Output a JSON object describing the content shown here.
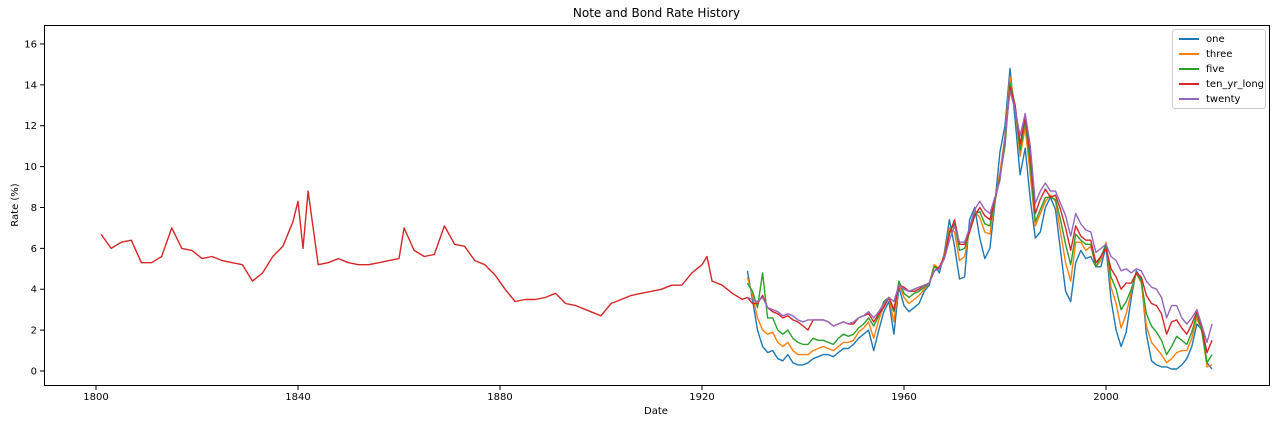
{
  "chart_data": {
    "type": "line",
    "title": "Note and Bond Rate History",
    "xlabel": "Date",
    "ylabel": "Rate (%)",
    "xlim": [
      1790,
      2031
    ],
    "ylim": [
      -0.7,
      16.9
    ],
    "xticks": [
      1800,
      1840,
      1880,
      1920,
      1960,
      2000
    ],
    "yticks": [
      0,
      2,
      4,
      6,
      8,
      10,
      12,
      14,
      16
    ],
    "grid": false,
    "legend_position": "upper right",
    "series": [
      {
        "name": "one",
        "color": "#1f77b4",
        "x": [
          1929,
          1930,
          1931,
          1932,
          1933,
          1934,
          1935,
          1936,
          1937,
          1938,
          1939,
          1940,
          1941,
          1942,
          1943,
          1944,
          1945,
          1946,
          1947,
          1948,
          1949,
          1950,
          1951,
          1952,
          1953,
          1954,
          1955,
          1956,
          1957,
          1958,
          1959,
          1960,
          1961,
          1962,
          1963,
          1964,
          1965,
          1966,
          1967,
          1968,
          1969,
          1970,
          1971,
          1972,
          1973,
          1974,
          1975,
          1976,
          1977,
          1978,
          1979,
          1980,
          1981,
          1982,
          1983,
          1984,
          1985,
          1986,
          1987,
          1988,
          1989,
          1990,
          1991,
          1992,
          1993,
          1994,
          1995,
          1996,
          1997,
          1998,
          1999,
          2000,
          2001,
          2002,
          2003,
          2004,
          2005,
          2006,
          2007,
          2008,
          2009,
          2010,
          2011,
          2012,
          2013,
          2014,
          2015,
          2016,
          2017,
          2018,
          2019,
          2020,
          2021
        ],
        "values": [
          4.9,
          3.5,
          2.0,
          1.2,
          0.9,
          1.0,
          0.6,
          0.5,
          0.8,
          0.4,
          0.3,
          0.3,
          0.4,
          0.6,
          0.7,
          0.8,
          0.8,
          0.7,
          0.9,
          1.1,
          1.1,
          1.3,
          1.6,
          1.8,
          2.0,
          1.0,
          2.0,
          2.9,
          3.4,
          1.8,
          4.1,
          3.2,
          2.9,
          3.1,
          3.3,
          3.9,
          4.2,
          5.2,
          4.8,
          5.8,
          7.4,
          6.1,
          4.5,
          4.6,
          7.4,
          8.0,
          6.5,
          5.5,
          6.0,
          8.2,
          10.7,
          12.0,
          14.8,
          12.3,
          9.6,
          10.9,
          8.4,
          6.5,
          6.8,
          8.0,
          8.5,
          7.9,
          5.9,
          3.9,
          3.4,
          5.3,
          5.9,
          5.5,
          5.6,
          5.1,
          5.1,
          6.1,
          3.5,
          2.0,
          1.2,
          1.9,
          3.6,
          4.9,
          4.5,
          1.8,
          0.5,
          0.3,
          0.2,
          0.2,
          0.1,
          0.1,
          0.3,
          0.6,
          1.2,
          2.3,
          2.0,
          0.4,
          0.1
        ]
      },
      {
        "name": "three",
        "color": "#ff7f0e",
        "x": [
          1929,
          1930,
          1931,
          1932,
          1933,
          1934,
          1935,
          1936,
          1937,
          1938,
          1939,
          1940,
          1941,
          1942,
          1943,
          1944,
          1945,
          1946,
          1947,
          1948,
          1949,
          1950,
          1951,
          1952,
          1953,
          1954,
          1955,
          1956,
          1957,
          1958,
          1959,
          1960,
          1961,
          1962,
          1963,
          1964,
          1965,
          1966,
          1967,
          1968,
          1969,
          1970,
          1971,
          1972,
          1973,
          1974,
          1975,
          1976,
          1977,
          1978,
          1979,
          1980,
          1981,
          1982,
          1983,
          1984,
          1985,
          1986,
          1987,
          1988,
          1989,
          1990,
          1991,
          1992,
          1993,
          1994,
          1995,
          1996,
          1997,
          1998,
          1999,
          2000,
          2001,
          2002,
          2003,
          2004,
          2005,
          2006,
          2007,
          2008,
          2009,
          2010,
          2011,
          2012,
          2013,
          2014,
          2015,
          2016,
          2017,
          2018,
          2019,
          2020,
          2021
        ],
        "values": [
          4.6,
          3.7,
          2.6,
          2.0,
          1.8,
          1.9,
          1.4,
          1.2,
          1.4,
          1.0,
          0.8,
          0.8,
          0.8,
          1.0,
          1.1,
          1.2,
          1.1,
          1.0,
          1.2,
          1.4,
          1.4,
          1.5,
          1.9,
          2.1,
          2.4,
          1.6,
          2.5,
          3.2,
          3.6,
          2.4,
          4.3,
          3.6,
          3.3,
          3.5,
          3.7,
          4.0,
          4.3,
          5.2,
          5.0,
          5.7,
          7.0,
          6.8,
          5.4,
          5.6,
          6.9,
          7.8,
          7.5,
          6.8,
          6.7,
          8.3,
          9.7,
          11.5,
          14.4,
          12.9,
          10.5,
          11.9,
          9.6,
          7.1,
          7.7,
          8.3,
          8.6,
          8.3,
          6.8,
          5.3,
          4.4,
          6.3,
          6.3,
          5.9,
          6.1,
          5.1,
          5.4,
          6.3,
          4.1,
          3.3,
          2.1,
          2.8,
          3.9,
          4.8,
          4.3,
          2.2,
          1.4,
          1.1,
          0.8,
          0.4,
          0.6,
          0.9,
          1.0,
          1.0,
          1.6,
          2.6,
          1.9,
          0.2,
          0.3
        ]
      },
      {
        "name": "five",
        "color": "#2ca02c",
        "x": [
          1929,
          1930,
          1931,
          1932,
          1933,
          1934,
          1935,
          1936,
          1937,
          1938,
          1939,
          1940,
          1941,
          1942,
          1943,
          1944,
          1945,
          1946,
          1947,
          1948,
          1949,
          1950,
          1951,
          1952,
          1953,
          1954,
          1955,
          1956,
          1957,
          1958,
          1959,
          1960,
          1961,
          1962,
          1963,
          1964,
          1965,
          1966,
          1967,
          1968,
          1969,
          1970,
          1971,
          1972,
          1973,
          1974,
          1975,
          1976,
          1977,
          1978,
          1979,
          1980,
          1981,
          1982,
          1983,
          1984,
          1985,
          1986,
          1987,
          1988,
          1989,
          1990,
          1991,
          1992,
          1993,
          1994,
          1995,
          1996,
          1997,
          1998,
          1999,
          2000,
          2001,
          2002,
          2003,
          2004,
          2005,
          2006,
          2007,
          2008,
          2009,
          2010,
          2011,
          2012,
          2013,
          2014,
          2015,
          2016,
          2017,
          2018,
          2019,
          2020,
          2021
        ],
        "values": [
          4.3,
          3.9,
          3.1,
          4.8,
          2.6,
          2.6,
          2.0,
          1.8,
          2.0,
          1.6,
          1.4,
          1.3,
          1.3,
          1.6,
          1.5,
          1.5,
          1.4,
          1.3,
          1.6,
          1.8,
          1.7,
          1.8,
          2.1,
          2.3,
          2.6,
          2.2,
          2.7,
          3.4,
          3.6,
          2.9,
          4.4,
          3.8,
          3.6,
          3.8,
          3.9,
          4.1,
          4.3,
          5.1,
          5.0,
          5.6,
          6.8,
          7.2,
          5.9,
          6.0,
          6.8,
          7.7,
          7.8,
          7.2,
          7.1,
          8.3,
          9.5,
          11.0,
          14.1,
          13.0,
          10.8,
          12.2,
          10.1,
          7.3,
          7.9,
          8.5,
          8.5,
          8.4,
          7.4,
          6.2,
          5.2,
          6.7,
          6.4,
          6.2,
          6.2,
          5.1,
          5.6,
          6.2,
          4.6,
          4.0,
          3.0,
          3.4,
          4.0,
          4.8,
          4.4,
          2.8,
          2.2,
          1.9,
          1.5,
          0.8,
          1.2,
          1.7,
          1.5,
          1.3,
          1.9,
          2.8,
          1.9,
          0.4,
          0.8
        ]
      },
      {
        "name": "ten_yr_long",
        "color": "#d62728",
        "x": [
          1801,
          1803,
          1805,
          1807,
          1809,
          1811,
          1813,
          1815,
          1817,
          1819,
          1821,
          1823,
          1825,
          1827,
          1829,
          1831,
          1833,
          1835,
          1837,
          1839,
          1840,
          1841,
          1842,
          1844,
          1846,
          1848,
          1850,
          1852,
          1854,
          1856,
          1858,
          1860,
          1861,
          1863,
          1865,
          1867,
          1869,
          1871,
          1873,
          1875,
          1877,
          1879,
          1881,
          1883,
          1885,
          1887,
          1889,
          1891,
          1893,
          1895,
          1897,
          1899,
          1900,
          1902,
          1904,
          1906,
          1908,
          1910,
          1912,
          1914,
          1916,
          1918,
          1920,
          1921,
          1922,
          1924,
          1926,
          1928,
          1929,
          1930,
          1931,
          1932,
          1933,
          1934,
          1935,
          1936,
          1937,
          1938,
          1939,
          1940,
          1941,
          1942,
          1943,
          1944,
          1945,
          1946,
          1947,
          1948,
          1949,
          1950,
          1951,
          1952,
          1953,
          1954,
          1955,
          1956,
          1957,
          1958,
          1959,
          1960,
          1961,
          1962,
          1963,
          1964,
          1965,
          1966,
          1967,
          1968,
          1969,
          1970,
          1971,
          1972,
          1973,
          1974,
          1975,
          1976,
          1977,
          1978,
          1979,
          1980,
          1981,
          1982,
          1983,
          1984,
          1985,
          1986,
          1987,
          1988,
          1989,
          1990,
          1991,
          1992,
          1993,
          1994,
          1995,
          1996,
          1997,
          1998,
          1999,
          2000,
          2001,
          2002,
          2003,
          2004,
          2005,
          2006,
          2007,
          2008,
          2009,
          2010,
          2011,
          2012,
          2013,
          2014,
          2015,
          2016,
          2017,
          2018,
          2019,
          2020,
          2021
        ],
        "values": [
          6.7,
          6.0,
          6.3,
          6.4,
          5.3,
          5.3,
          5.6,
          7.0,
          6.0,
          5.9,
          5.5,
          5.6,
          5.4,
          5.3,
          5.2,
          4.4,
          4.8,
          5.6,
          6.1,
          7.3,
          8.3,
          6.0,
          8.8,
          5.2,
          5.3,
          5.5,
          5.3,
          5.2,
          5.2,
          5.3,
          5.4,
          5.5,
          7.0,
          5.9,
          5.6,
          5.7,
          7.1,
          6.2,
          6.1,
          5.4,
          5.2,
          4.7,
          4.0,
          3.4,
          3.5,
          3.5,
          3.6,
          3.8,
          3.3,
          3.2,
          3.0,
          2.8,
          2.7,
          3.3,
          3.5,
          3.7,
          3.8,
          3.9,
          4.0,
          4.2,
          4.2,
          4.8,
          5.2,
          5.6,
          4.4,
          4.2,
          3.8,
          3.5,
          3.6,
          3.3,
          3.3,
          3.7,
          3.1,
          2.9,
          2.8,
          2.6,
          2.7,
          2.5,
          2.4,
          2.2,
          2.0,
          2.5,
          2.5,
          2.5,
          2.4,
          2.2,
          2.3,
          2.4,
          2.3,
          2.3,
          2.6,
          2.7,
          2.8,
          2.4,
          2.8,
          3.1,
          3.6,
          3.0,
          4.2,
          4.1,
          3.9,
          3.9,
          4.0,
          4.2,
          4.3,
          4.9,
          5.1,
          5.6,
          6.7,
          7.4,
          6.2,
          6.2,
          6.8,
          7.6,
          8.0,
          7.6,
          7.4,
          8.4,
          9.4,
          11.4,
          13.9,
          13.0,
          11.1,
          12.4,
          10.6,
          7.7,
          8.4,
          8.9,
          8.5,
          8.6,
          7.9,
          7.0,
          5.9,
          7.1,
          6.6,
          6.4,
          6.4,
          5.3,
          5.6,
          6.0,
          5.0,
          4.6,
          4.0,
          4.3,
          4.3,
          4.8,
          4.6,
          3.7,
          3.3,
          3.2,
          2.8,
          1.8,
          2.4,
          2.5,
          2.1,
          1.8,
          2.3,
          2.9,
          2.1,
          0.9,
          1.5
        ]
      },
      {
        "name": "twenty",
        "color": "#9467bd",
        "x": [
          1929,
          1930,
          1931,
          1932,
          1933,
          1934,
          1935,
          1936,
          1937,
          1938,
          1939,
          1940,
          1941,
          1942,
          1943,
          1944,
          1945,
          1946,
          1947,
          1948,
          1949,
          1950,
          1951,
          1952,
          1953,
          1954,
          1955,
          1956,
          1957,
          1958,
          1959,
          1960,
          1961,
          1962,
          1963,
          1964,
          1965,
          1966,
          1967,
          1968,
          1969,
          1970,
          1971,
          1972,
          1973,
          1974,
          1975,
          1976,
          1977,
          1978,
          1979,
          1980,
          1981,
          1982,
          1983,
          1984,
          1985,
          1986,
          1987,
          1988,
          1989,
          1990,
          1991,
          1992,
          1993,
          1994,
          1995,
          1996,
          1997,
          1998,
          1999,
          2000,
          2001,
          2002,
          2003,
          2004,
          2005,
          2006,
          2007,
          2008,
          2009,
          2010,
          2011,
          2012,
          2013,
          2014,
          2015,
          2016,
          2017,
          2018,
          2019,
          2020,
          2021
        ],
        "values": [
          3.6,
          3.5,
          3.4,
          3.6,
          3.1,
          3.0,
          2.9,
          2.7,
          2.8,
          2.7,
          2.5,
          2.4,
          2.5,
          2.5,
          2.5,
          2.5,
          2.4,
          2.2,
          2.3,
          2.4,
          2.3,
          2.4,
          2.6,
          2.7,
          2.9,
          2.6,
          2.9,
          3.3,
          3.6,
          3.4,
          4.2,
          4.0,
          3.9,
          4.0,
          4.1,
          4.2,
          4.3,
          4.9,
          5.0,
          5.5,
          6.4,
          7.1,
          6.3,
          6.3,
          7.0,
          7.9,
          8.3,
          7.9,
          7.7,
          8.5,
          9.3,
          11.4,
          13.7,
          12.8,
          11.5,
          12.6,
          11.0,
          8.2,
          8.8,
          9.2,
          8.8,
          8.8,
          8.2,
          7.6,
          6.6,
          7.7,
          7.2,
          6.9,
          6.8,
          5.8,
          6.0,
          6.2,
          5.6,
          5.4,
          4.9,
          5.0,
          4.8,
          5.0,
          4.9,
          4.4,
          4.1,
          4.0,
          3.6,
          2.6,
          3.2,
          3.2,
          2.6,
          2.3,
          2.6,
          3.0,
          2.2,
          1.4,
          2.3
        ]
      }
    ]
  },
  "legend": {
    "items": [
      {
        "label": "one",
        "color": "#1f77b4"
      },
      {
        "label": "three",
        "color": "#ff7f0e"
      },
      {
        "label": "five",
        "color": "#2ca02c"
      },
      {
        "label": "ten_yr_long",
        "color": "#d62728"
      },
      {
        "label": "twenty",
        "color": "#9467bd"
      }
    ]
  }
}
